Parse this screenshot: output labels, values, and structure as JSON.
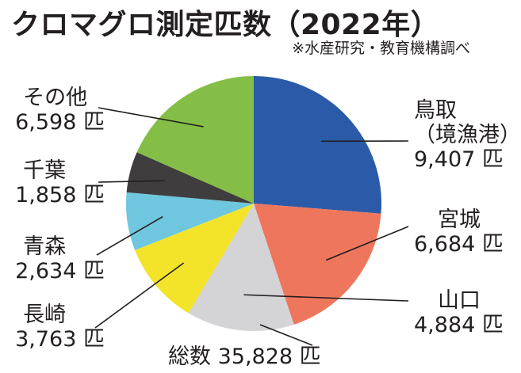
{
  "title": "クロマグロ測定匹数（2022年）",
  "source": "※水産研究・教育機構調べ",
  "total_label": "総数 35,828 匹",
  "unit": "匹",
  "chart_data": {
    "type": "pie",
    "title": "クロマグロ測定匹数（2022年）",
    "total": 35828,
    "slices": [
      {
        "name": "鳥取",
        "sub": "（境漁港）",
        "value": 9407,
        "display": "9,407 匹",
        "color": "#2b5ba8"
      },
      {
        "name": "宮城",
        "value": 6684,
        "display": "6,684 匹",
        "color": "#ee765d"
      },
      {
        "name": "山口",
        "value": 4884,
        "display": "4,884 匹",
        "color": "#d4d4d6"
      },
      {
        "name": "長崎",
        "value": 3763,
        "display": "3,763 匹",
        "color": "#f3e42a"
      },
      {
        "name": "青森",
        "value": 2634,
        "display": "2,634 匹",
        "color": "#6ec7de"
      },
      {
        "name": "千葉",
        "value": 1858,
        "display": "1,858 匹",
        "color": "#3f3d3e"
      },
      {
        "name": "その他",
        "value": 6598,
        "display": "6,598 匹",
        "color": "#84be47"
      }
    ]
  }
}
